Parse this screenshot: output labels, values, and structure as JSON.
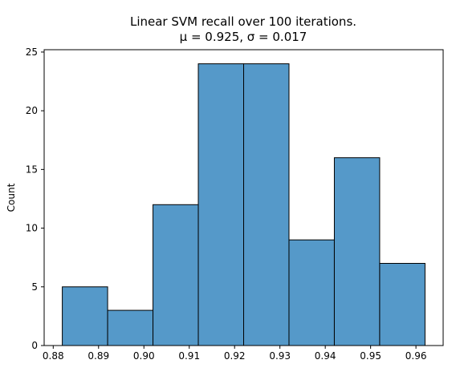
{
  "chart_data": {
    "type": "bar",
    "title_lines": [
      "Linear SVM recall over 100 iterations.",
      "μ = 0.925, σ = 0.017"
    ],
    "xlabel": "",
    "ylabel": "Count",
    "xlim": [
      0.878,
      0.966
    ],
    "ylim": [
      0,
      25.2
    ],
    "x_ticks": [
      0.88,
      0.89,
      0.9,
      0.91,
      0.92,
      0.93,
      0.94,
      0.95,
      0.96
    ],
    "x_tick_labels": [
      "0.88",
      "0.89",
      "0.90",
      "0.91",
      "0.92",
      "0.93",
      "0.94",
      "0.95",
      "0.96"
    ],
    "y_ticks": [
      0,
      5,
      10,
      15,
      20,
      25
    ],
    "y_tick_labels": [
      "0",
      "5",
      "10",
      "15",
      "20",
      "25"
    ],
    "bins": [
      {
        "x0": 0.882,
        "x1": 0.892,
        "count": 5
      },
      {
        "x0": 0.892,
        "x1": 0.902,
        "count": 3
      },
      {
        "x0": 0.902,
        "x1": 0.912,
        "count": 12
      },
      {
        "x0": 0.912,
        "x1": 0.922,
        "count": 24
      },
      {
        "x0": 0.922,
        "x1": 0.932,
        "count": 24
      },
      {
        "x0": 0.932,
        "x1": 0.942,
        "count": 9
      },
      {
        "x0": 0.942,
        "x1": 0.952,
        "count": 16
      },
      {
        "x0": 0.952,
        "x1": 0.962,
        "count": 7
      }
    ],
    "bar_color": "#5599c9",
    "edge_color": "#000000",
    "grid": false,
    "legend": "none"
  }
}
